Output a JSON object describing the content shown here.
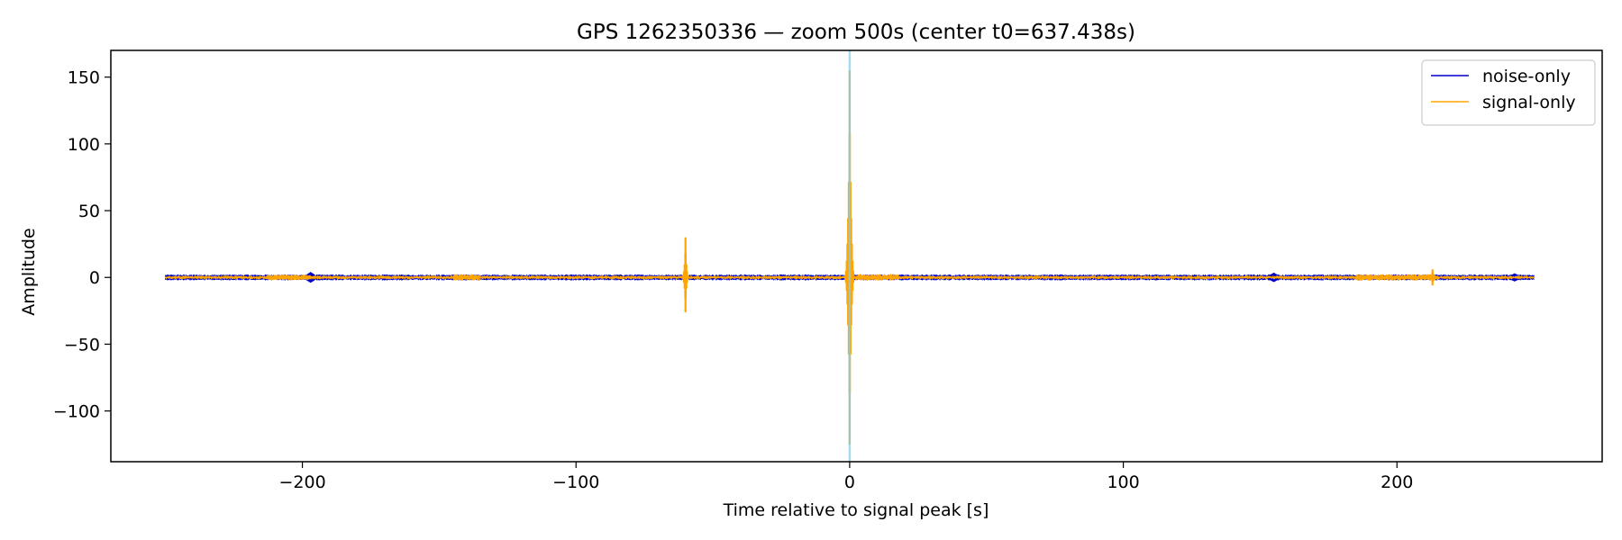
{
  "chart_data": {
    "type": "line",
    "title": "GPS 1262350336 — zoom 500s (center t0=637.438s)",
    "xlabel": "Time relative to signal peak [s]",
    "ylabel": "Amplitude",
    "xlim": [
      -270,
      275
    ],
    "ylim": [
      -138,
      170
    ],
    "xticks": [
      -200,
      -100,
      0,
      100,
      200
    ],
    "xtick_labels": [
      "−200",
      "−100",
      "0",
      "100",
      "200"
    ],
    "yticks": [
      150,
      100,
      50,
      0,
      -50,
      -100
    ],
    "ytick_labels": [
      "150",
      "100",
      "50",
      "0",
      "−50",
      "−100"
    ],
    "grid": false,
    "legend_placement": "top-right",
    "peak_marker": {
      "x": 0,
      "color": "#87ceeb"
    },
    "series": [
      {
        "name": "noise-only",
        "color": "#0000cc",
        "x_range": [
          -250,
          250
        ],
        "baseline_amplitude": 2.2,
        "features": [
          {
            "x": -197,
            "amplitude": 4
          },
          {
            "x": 155,
            "amplitude": 3.5
          },
          {
            "x": 243,
            "amplitude": 3
          }
        ]
      },
      {
        "name": "signal-only",
        "color": "#ffa500",
        "x_range": [
          -250,
          250
        ],
        "baseline_amplitude": 1.4,
        "features": [
          {
            "x": -60,
            "max": 30,
            "min": -26
          },
          {
            "x": 0,
            "max": 155,
            "min": -125
          },
          {
            "x": 213,
            "max": 6,
            "min": -6
          }
        ]
      }
    ]
  }
}
